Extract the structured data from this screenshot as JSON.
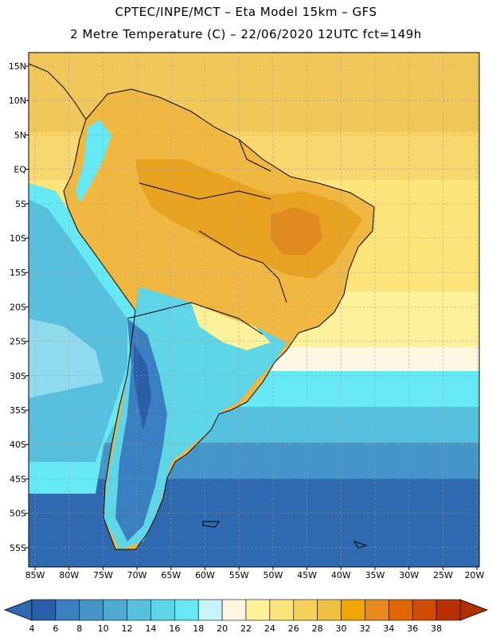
{
  "header": {
    "line1": "CPTEC/INPE/MCT –  Eta Model 15km – GFS",
    "line2": "2 Metre Temperature (C) – 22/06/2020 12UTC fct=149h"
  },
  "axes": {
    "lat_labels": [
      "15N",
      "10N",
      "5N",
      "EQ",
      "5S",
      "10S",
      "15S",
      "20S",
      "25S",
      "30S",
      "35S",
      "40S",
      "45S",
      "50S",
      "55S"
    ],
    "lon_labels": [
      "85W",
      "80W",
      "75W",
      "70W",
      "65W",
      "60W",
      "55W",
      "50W",
      "45W",
      "40W",
      "35W",
      "30W",
      "25W",
      "20W"
    ]
  },
  "colorbar": {
    "labels": [
      "4",
      "6",
      "8",
      "10",
      "12",
      "14",
      "16",
      "18",
      "20",
      "22",
      "24",
      "26",
      "28",
      "30",
      "32",
      "34",
      "36",
      "38"
    ],
    "colors": [
      "#2a5ea8",
      "#3a7fc0",
      "#4596c8",
      "#4fabd2",
      "#56c0de",
      "#5fd5e8",
      "#66e8f5",
      "#c9f3fb",
      "#fdf6e0",
      "#fdf29a",
      "#fbe47a",
      "#f5d05a",
      "#efc040",
      "#f0a800",
      "#e88a20",
      "#e06800",
      "#d04a00",
      "#b83000"
    ],
    "under_color": "#2f6ab0",
    "over_color": "#b03000"
  }
}
